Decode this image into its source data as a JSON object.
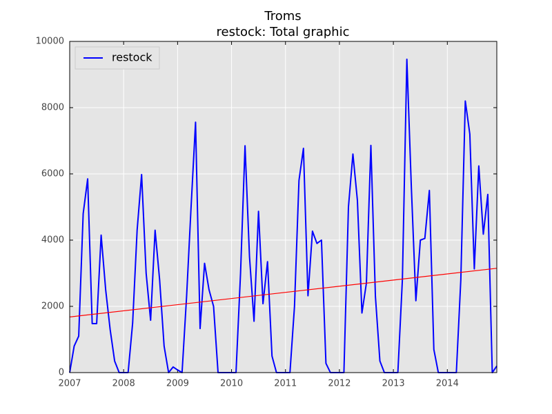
{
  "chart_data": {
    "type": "line",
    "title": "Troms",
    "subtitle": "restock: Total graphic",
    "x": [
      2007,
      2007.083,
      2007.167,
      2007.25,
      2007.333,
      2007.417,
      2007.5,
      2007.583,
      2007.667,
      2007.75,
      2007.833,
      2007.917,
      2008,
      2008.083,
      2008.167,
      2008.25,
      2008.333,
      2008.417,
      2008.5,
      2008.583,
      2008.667,
      2008.75,
      2008.833,
      2008.917,
      2009,
      2009.083,
      2009.167,
      2009.25,
      2009.333,
      2009.417,
      2009.5,
      2009.583,
      2009.667,
      2009.75,
      2009.833,
      2009.917,
      2010,
      2010.083,
      2010.167,
      2010.25,
      2010.333,
      2010.417,
      2010.5,
      2010.583,
      2010.667,
      2010.75,
      2010.833,
      2010.917,
      2011,
      2011.083,
      2011.167,
      2011.25,
      2011.333,
      2011.417,
      2011.5,
      2011.583,
      2011.667,
      2011.75,
      2011.833,
      2011.917,
      2012,
      2012.083,
      2012.167,
      2012.25,
      2012.333,
      2012.417,
      2012.5,
      2012.583,
      2012.667,
      2012.75,
      2012.833,
      2012.917,
      2013,
      2013.083,
      2013.167,
      2013.25,
      2013.333,
      2013.417,
      2013.5,
      2013.583,
      2013.667,
      2013.75,
      2013.833,
      2013.917,
      2014,
      2014.083,
      2014.167,
      2014.25,
      2014.333,
      2014.417,
      2014.5,
      2014.583,
      2014.667,
      2014.75,
      2014.833,
      2014.917
    ],
    "series": [
      {
        "name": "restock",
        "color": "#0000ff",
        "values": [
          0,
          800,
          1100,
          4800,
          5850,
          1480,
          1480,
          4150,
          2500,
          1300,
          350,
          0,
          0,
          0,
          1500,
          4300,
          5980,
          3000,
          1580,
          4300,
          2800,
          800,
          0,
          170,
          80,
          0,
          2300,
          5000,
          7560,
          1330,
          3300,
          2500,
          2000,
          0,
          0,
          0,
          0,
          0,
          3000,
          6850,
          3500,
          1550,
          4870,
          2080,
          3350,
          500,
          0,
          0,
          0,
          0,
          2000,
          5800,
          6770,
          2320,
          4270,
          3900,
          4000,
          280,
          0,
          0,
          0,
          0,
          5000,
          6600,
          5200,
          1800,
          2700,
          6860,
          2300,
          350,
          0,
          0,
          0,
          0,
          2800,
          9460,
          5600,
          2170,
          4000,
          4050,
          5500,
          700,
          0,
          0,
          0,
          0,
          0,
          2800,
          8200,
          7200,
          3130,
          6240,
          4180,
          5380,
          0,
          200
        ]
      }
    ],
    "trend": {
      "color": "#ff0000",
      "x": [
        2007,
        2014.917
      ],
      "values": [
        1680,
        3150
      ]
    },
    "xlim": [
      2007,
      2014.917
    ],
    "xticks": [
      2007,
      2008,
      2009,
      2010,
      2011,
      2012,
      2013,
      2014
    ],
    "ylim": [
      0,
      10000
    ],
    "yticks": [
      0,
      2000,
      4000,
      6000,
      8000,
      10000
    ],
    "grid": true,
    "legend": "upper-left",
    "background": "#e5e5e5"
  }
}
